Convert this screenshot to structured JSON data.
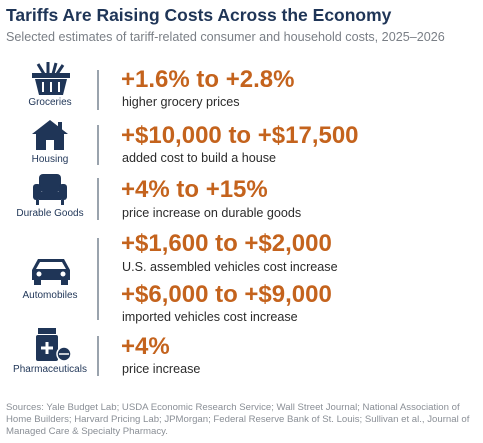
{
  "header": {
    "title": "Tariffs Are Raising Costs Across the Economy",
    "subtitle": "Selected estimates of tariff-related consumer and household costs, 2025–2026"
  },
  "rows": [
    {
      "label": "Groceries",
      "items": [
        {
          "value": "+1.6% to +2.8%",
          "description": "higher grocery prices"
        }
      ]
    },
    {
      "label": "Housing",
      "items": [
        {
          "value": "+$10,000 to +$17,500",
          "description": "added cost to build a house"
        }
      ]
    },
    {
      "label": "Durable Goods",
      "items": [
        {
          "value": "+4% to +15%",
          "description": "price increase on durable goods"
        }
      ]
    },
    {
      "label": "Automobiles",
      "items": [
        {
          "value": "+$1,600 to +$2,000",
          "description": "U.S. assembled vehicles cost increase"
        },
        {
          "value": "+$6,000 to +$9,000",
          "description": "imported vehicles cost increase"
        }
      ]
    },
    {
      "label": "Pharmaceuticals",
      "items": [
        {
          "value": "+4%",
          "description": "price increase"
        }
      ]
    }
  ],
  "sources": "Sources: Yale Budget Lab; USDA Economic Research Service; Wall Street Journal; National Association of Home Builders; Harvard Pricing Lab; JPMorgan; Federal Reserve Bank of St. Louis; Sullivan et al., Journal of Managed Care & Specialty Pharmacy."
}
